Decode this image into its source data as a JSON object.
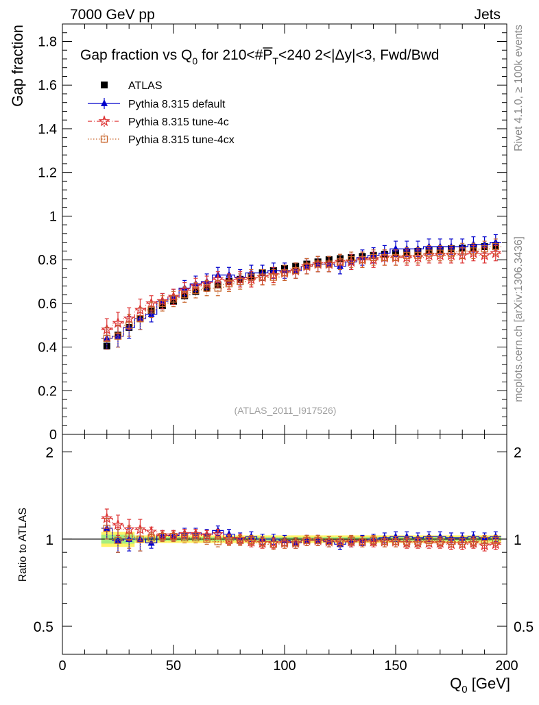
{
  "header": {
    "energy_label": "7000 GeV pp",
    "category_label": "Jets"
  },
  "side_labels": {
    "rivet": "Rivet 4.1.0, ≥ 100k events",
    "source": "mcplots.cern.ch [arXiv:1306.3436]"
  },
  "chart_data": [
    {
      "type": "scatter",
      "panel": "main",
      "title": "Gap fraction vs Q0 for 210<#PT<240  2<|Δy|<3, Fwd/Bwd",
      "title_parts": {
        "prefix": "Gap fraction vs Q",
        "sub0": "0",
        "mid": " for 210<#",
        "pbar": "P",
        "subT": "T",
        "suffix": "<240  2<|Δy|<3, Fwd/Bwd"
      },
      "ylabel": "Gap fraction",
      "xlim": [
        0,
        200
      ],
      "ylim": [
        0,
        1.88
      ],
      "yticks": [
        0,
        0.2,
        0.4,
        0.6,
        0.8,
        1,
        1.2,
        1.4,
        1.6,
        1.8
      ],
      "ytick_labels": [
        "0",
        "0.2",
        "0.4",
        "0.6",
        "0.8",
        "1",
        "1.2",
        "1.4",
        "1.6",
        "1.8"
      ],
      "watermark": "(ATLAS_2011_I917526)",
      "legend": [
        "ATLAS",
        "Pythia 8.315 default",
        "Pythia 8.315 tune-4c",
        "Pythia 8.315 tune-4cx"
      ],
      "legend_position": "top-left",
      "x": [
        20,
        25,
        30,
        35,
        40,
        45,
        50,
        55,
        60,
        65,
        70,
        75,
        80,
        85,
        90,
        95,
        100,
        105,
        110,
        115,
        120,
        125,
        130,
        135,
        140,
        145,
        150,
        155,
        160,
        165,
        170,
        175,
        180,
        185,
        190,
        195
      ],
      "series": [
        {
          "name": "ATLAS",
          "color": "#000000",
          "marker": "square",
          "values": [
            0.405,
            0.455,
            0.49,
            0.53,
            0.565,
            0.59,
            0.61,
            0.635,
            0.655,
            0.67,
            0.685,
            0.7,
            0.71,
            0.725,
            0.74,
            0.75,
            0.76,
            0.77,
            0.78,
            0.79,
            0.8,
            0.805,
            0.81,
            0.815,
            0.82,
            0.825,
            0.83,
            0.835,
            0.838,
            0.842,
            0.846,
            0.85,
            0.853,
            0.856,
            0.86,
            0.865
          ]
        },
        {
          "name": "Pythia 8.315 default",
          "color": "#0000cc",
          "marker": "triangle",
          "values": [
            0.44,
            0.45,
            0.49,
            0.53,
            0.55,
            0.61,
            0.63,
            0.67,
            0.69,
            0.7,
            0.73,
            0.73,
            0.72,
            0.74,
            0.74,
            0.75,
            0.75,
            0.75,
            0.77,
            0.78,
            0.78,
            0.77,
            0.79,
            0.81,
            0.82,
            0.83,
            0.85,
            0.85,
            0.85,
            0.86,
            0.86,
            0.86,
            0.86,
            0.87,
            0.87,
            0.88
          ]
        },
        {
          "name": "Pythia 8.315 tune-4c",
          "color": "#dd3333",
          "marker": "star",
          "values": [
            0.48,
            0.51,
            0.53,
            0.57,
            0.6,
            0.61,
            0.63,
            0.66,
            0.68,
            0.69,
            0.71,
            0.7,
            0.71,
            0.71,
            0.72,
            0.73,
            0.74,
            0.75,
            0.77,
            0.78,
            0.78,
            0.79,
            0.79,
            0.8,
            0.8,
            0.81,
            0.81,
            0.81,
            0.81,
            0.82,
            0.82,
            0.82,
            0.82,
            0.83,
            0.82,
            0.83
          ]
        },
        {
          "name": "Pythia 8.315 tune-4cx",
          "color": "#c8642a",
          "marker": "open-square",
          "values": [
            0.44,
            0.45,
            0.5,
            0.53,
            0.57,
            0.6,
            0.62,
            0.64,
            0.66,
            0.67,
            0.67,
            0.69,
            0.7,
            0.72,
            0.72,
            0.72,
            0.74,
            0.75,
            0.77,
            0.78,
            0.78,
            0.79,
            0.8,
            0.8,
            0.81,
            0.81,
            0.81,
            0.82,
            0.82,
            0.83,
            0.83,
            0.83,
            0.84,
            0.84,
            0.85,
            0.86
          ]
        }
      ]
    },
    {
      "type": "scatter",
      "panel": "ratio",
      "ylabel": "Ratio to ATLAS",
      "xlabel": "Q0 [GeV]",
      "xlabel_parts": {
        "main": "Q",
        "sub": "0",
        "unit": " [GeV]"
      },
      "xlim": [
        0,
        200
      ],
      "ylim": [
        0.4,
        2.3
      ],
      "yscale": "log",
      "xticks": [
        0,
        50,
        100,
        150,
        200
      ],
      "xtick_labels": [
        "0",
        "50",
        "100",
        "150",
        "200"
      ],
      "yticks": [
        0.5,
        1,
        2
      ],
      "ytick_labels": [
        "0.5",
        "1",
        "2"
      ],
      "reference_line": 1,
      "series": [
        {
          "name": "Pythia 8.315 default",
          "color": "#0000cc",
          "marker": "triangle",
          "values": [
            1.09,
            0.99,
            1.0,
            1.0,
            0.97,
            1.03,
            1.03,
            1.05,
            1.05,
            1.04,
            1.07,
            1.04,
            1.01,
            1.02,
            1.0,
            1.0,
            0.99,
            0.97,
            0.99,
            0.99,
            0.98,
            0.96,
            0.98,
            0.99,
            1.0,
            1.01,
            1.02,
            1.02,
            1.01,
            1.02,
            1.02,
            1.01,
            1.01,
            1.02,
            1.01,
            1.02
          ]
        },
        {
          "name": "Pythia 8.315 tune-4c",
          "color": "#dd3333",
          "marker": "star",
          "values": [
            1.18,
            1.12,
            1.08,
            1.08,
            1.06,
            1.03,
            1.03,
            1.04,
            1.04,
            1.03,
            1.04,
            1.0,
            1.0,
            0.98,
            0.97,
            0.97,
            0.97,
            0.97,
            0.99,
            0.99,
            0.98,
            0.98,
            0.98,
            0.98,
            0.98,
            0.98,
            0.98,
            0.97,
            0.97,
            0.97,
            0.97,
            0.96,
            0.96,
            0.97,
            0.95,
            0.96
          ]
        },
        {
          "name": "Pythia 8.315 tune-4cx",
          "color": "#c8642a",
          "marker": "open-square",
          "values": [
            1.09,
            0.99,
            1.02,
            1.0,
            1.01,
            1.02,
            1.02,
            1.01,
            1.01,
            1.0,
            0.98,
            0.99,
            0.99,
            0.99,
            0.98,
            0.96,
            0.97,
            0.97,
            0.99,
            0.99,
            0.98,
            0.98,
            0.99,
            0.98,
            0.99,
            0.98,
            0.98,
            0.98,
            0.98,
            0.99,
            0.98,
            0.98,
            0.98,
            0.98,
            0.99,
            0.99
          ]
        }
      ]
    }
  ]
}
